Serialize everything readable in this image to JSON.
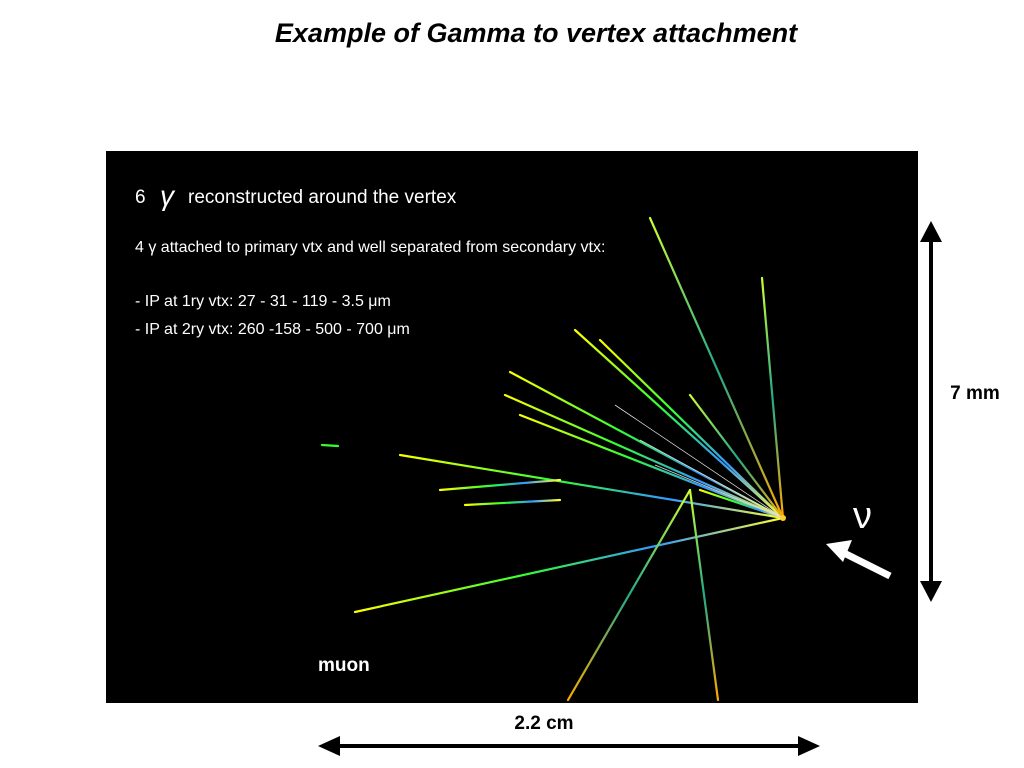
{
  "title": "Example of Gamma to vertex attachment",
  "image": {
    "line1": {
      "count": "6",
      "symbol": "γ",
      "text": "reconstructed around the vertex"
    },
    "line2": "4 γ attached to primary vtx and well  separated from secondary vtx:",
    "ip1": "- IP at 1ry vtx:  27  -  31 - 119 - 3.5 μm",
    "ip2": "- IP at 2ry vtx: 260 -158 - 500 - 700 μm",
    "muon_label": "muon",
    "nu_label": "ν"
  },
  "scale": {
    "height": "7 mm",
    "width": "2.2 cm"
  }
}
